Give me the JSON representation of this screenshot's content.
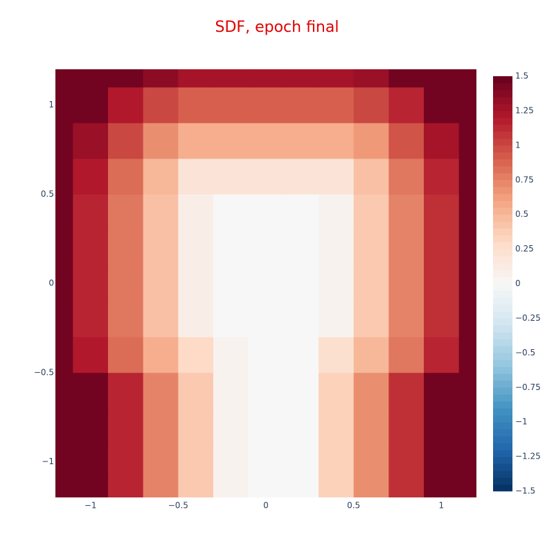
{
  "chart_data": {
    "type": "contour",
    "title": "SDF, epoch final",
    "x": [
      -1.2,
      -1.0,
      -0.8,
      -0.6,
      -0.4,
      -0.2,
      0,
      0.2,
      0.4,
      0.6,
      0.8,
      1.0,
      1.2
    ],
    "y": [
      -1.2,
      -1.0,
      -0.8,
      -0.6,
      -0.4,
      -0.2,
      0,
      0.2,
      0.4,
      0.6,
      0.8,
      1.0,
      1.2
    ],
    "z": [
      [
        1.45,
        1.45,
        1.15,
        0.75,
        0.4,
        0.05,
        0,
        0,
        0.35,
        0.7,
        1.1,
        1.45,
        1.45
      ],
      [
        1.45,
        1.45,
        1.15,
        0.75,
        0.4,
        0.05,
        0,
        0,
        0.35,
        0.7,
        1.1,
        1.45,
        1.45
      ],
      [
        1.45,
        1.45,
        1.15,
        0.75,
        0.4,
        0.05,
        0,
        0,
        0.35,
        0.7,
        1.1,
        1.45,
        1.45
      ],
      [
        1.45,
        1.45,
        1.15,
        0.75,
        0.4,
        0.05,
        0,
        0,
        0.35,
        0.7,
        1.1,
        1.45,
        1.45
      ],
      [
        1.45,
        1.2,
        0.85,
        0.55,
        0.3,
        0.05,
        0,
        0,
        0.25,
        0.5,
        0.8,
        1.15,
        1.45
      ],
      [
        1.45,
        1.15,
        0.8,
        0.45,
        0.1,
        0,
        0,
        0,
        0.05,
        0.4,
        0.75,
        1.1,
        1.45
      ],
      [
        1.45,
        1.15,
        0.8,
        0.45,
        0.1,
        0,
        0,
        0,
        0.05,
        0.4,
        0.75,
        1.1,
        1.45
      ],
      [
        1.45,
        1.15,
        0.8,
        0.45,
        0.1,
        0,
        0,
        0,
        0.05,
        0.4,
        0.75,
        1.1,
        1.45
      ],
      [
        1.45,
        1.15,
        0.8,
        0.45,
        0.1,
        0,
        0,
        0,
        0.05,
        0.4,
        0.75,
        1.1,
        1.45
      ],
      [
        1.45,
        1.2,
        0.85,
        0.5,
        0.2,
        0.2,
        0.2,
        0.2,
        0.2,
        0.45,
        0.8,
        1.15,
        1.45
      ],
      [
        1.45,
        1.3,
        1.0,
        0.7,
        0.55,
        0.55,
        0.55,
        0.55,
        0.55,
        0.65,
        0.95,
        1.25,
        1.45
      ],
      [
        1.45,
        1.45,
        1.2,
        1.0,
        0.9,
        0.9,
        0.9,
        0.9,
        0.9,
        1.0,
        1.15,
        1.45,
        1.45
      ],
      [
        1.45,
        1.45,
        1.45,
        1.35,
        1.25,
        1.25,
        1.25,
        1.25,
        1.25,
        1.3,
        1.45,
        1.45,
        1.45
      ]
    ],
    "xlim": [
      -1.2,
      1.2
    ],
    "ylim": [
      -1.2,
      1.2
    ],
    "xticks": [
      {
        "value": -1,
        "label": "−1"
      },
      {
        "value": -0.5,
        "label": "−0.5"
      },
      0,
      0.5,
      1
    ],
    "yticks": [
      {
        "value": -1,
        "label": "−1"
      },
      {
        "value": -0.5,
        "label": "−0.5"
      },
      0,
      0.5,
      1
    ],
    "zlim": [
      -1.5,
      1.5
    ],
    "zticks": [
      1.5,
      1.25,
      1,
      0.75,
      0.5,
      0.25,
      0,
      {
        "value": -0.25,
        "label": "−0.25"
      },
      {
        "value": -0.5,
        "label": "−0.5"
      },
      {
        "value": -0.75,
        "label": "−0.75"
      },
      {
        "value": -1,
        "label": "−1"
      },
      {
        "value": -1.25,
        "label": "−1.25"
      },
      {
        "value": -1.5,
        "label": "−1.5"
      }
    ],
    "colorscale": [
      "#053061",
      "#2166ac",
      "#4393c3",
      "#92c5de",
      "#d1e5f0",
      "#f7f7f7",
      "#fddbc7",
      "#f4a582",
      "#d6604d",
      "#b2182b",
      "#67001f"
    ]
  }
}
